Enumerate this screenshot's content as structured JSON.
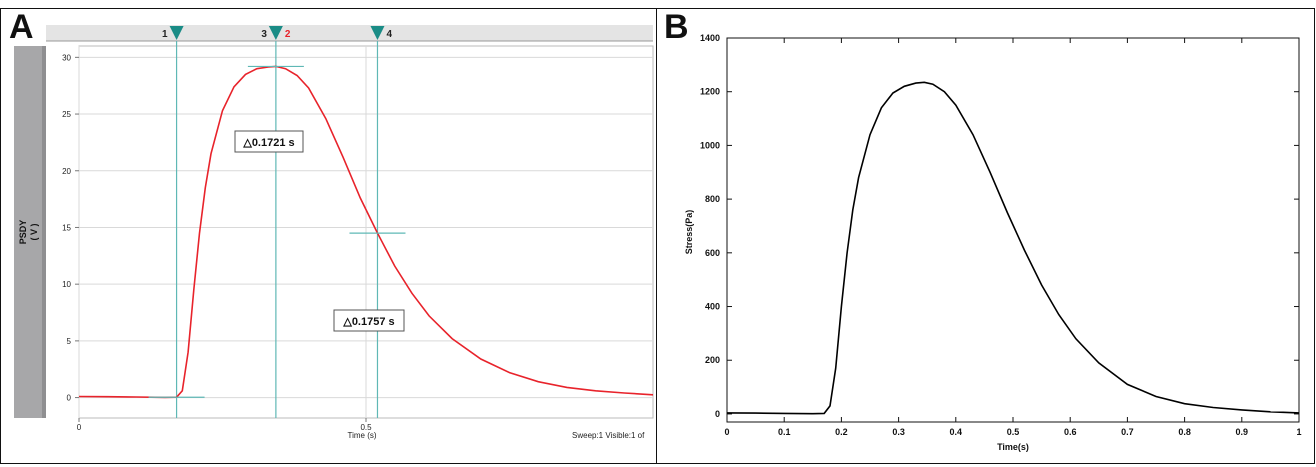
{
  "panels": {
    "a_letter": "A",
    "b_letter": "B"
  },
  "colors": {
    "red_trace": "#e8232b",
    "cursor_teal": "#5fb8b5",
    "marker_teal": "#1a8c86",
    "black_trace": "#000000",
    "gray_strip": "#a7a7a9"
  },
  "chart_data": [
    {
      "type": "line",
      "panel": "A",
      "ylabel": "PSDY",
      "yunit": "( V )",
      "xlabel": "Time (s)",
      "xlim": [
        0,
        1.0
      ],
      "ylim": [
        -1.8,
        31
      ],
      "yticks": [
        0,
        5,
        10,
        15,
        20,
        25,
        30
      ],
      "xticks": [
        0,
        0.5
      ],
      "grid": true,
      "status_text": "Sweep:1 Visible:1 of",
      "x": [
        0,
        0.05,
        0.1,
        0.15,
        0.17,
        0.18,
        0.19,
        0.2,
        0.21,
        0.22,
        0.23,
        0.25,
        0.27,
        0.29,
        0.31,
        0.33,
        0.343,
        0.36,
        0.38,
        0.4,
        0.43,
        0.46,
        0.49,
        0.52,
        0.55,
        0.58,
        0.61,
        0.65,
        0.7,
        0.75,
        0.8,
        0.85,
        0.9,
        0.95,
        1.0
      ],
      "y": [
        0.1,
        0.08,
        0.05,
        0.02,
        0.03,
        0.6,
        4,
        9.5,
        14.5,
        18.5,
        21.5,
        25.3,
        27.4,
        28.5,
        29.0,
        29.15,
        29.2,
        29.0,
        28.4,
        27.3,
        24.6,
        21.2,
        17.6,
        14.5,
        11.6,
        9.2,
        7.2,
        5.2,
        3.4,
        2.2,
        1.4,
        0.9,
        0.6,
        0.4,
        0.25
      ],
      "cursors": [
        {
          "label": "1",
          "x": 0.17
        },
        {
          "label": "3",
          "x": 0.343
        },
        {
          "label": "2",
          "x": 0.343
        },
        {
          "label": "4",
          "x": 0.52
        }
      ],
      "annotations": [
        {
          "text": "△0.1721 s"
        },
        {
          "text": "△0.1757 s"
        }
      ]
    },
    {
      "type": "line",
      "panel": "B",
      "xlabel": "Time(s)",
      "ylabel": "Stress(Pa)",
      "xlim": [
        0,
        1
      ],
      "ylim": [
        -30,
        1400
      ],
      "xticks": [
        0,
        0.1,
        0.2,
        0.3,
        0.4,
        0.5,
        0.6,
        0.7,
        0.8,
        0.9,
        1
      ],
      "yticks": [
        0,
        200,
        400,
        600,
        800,
        1000,
        1200,
        1400
      ],
      "grid": false,
      "x": [
        0,
        0.05,
        0.1,
        0.15,
        0.17,
        0.18,
        0.19,
        0.2,
        0.21,
        0.22,
        0.23,
        0.25,
        0.27,
        0.29,
        0.31,
        0.33,
        0.345,
        0.36,
        0.38,
        0.4,
        0.43,
        0.46,
        0.49,
        0.52,
        0.55,
        0.58,
        0.61,
        0.65,
        0.7,
        0.75,
        0.8,
        0.85,
        0.9,
        0.95,
        1.0
      ],
      "y": [
        4,
        3,
        2,
        1,
        2,
        30,
        170,
        400,
        600,
        760,
        880,
        1040,
        1140,
        1195,
        1220,
        1232,
        1235,
        1228,
        1200,
        1150,
        1040,
        900,
        750,
        610,
        480,
        370,
        280,
        190,
        110,
        65,
        38,
        24,
        15,
        8,
        4
      ]
    }
  ]
}
